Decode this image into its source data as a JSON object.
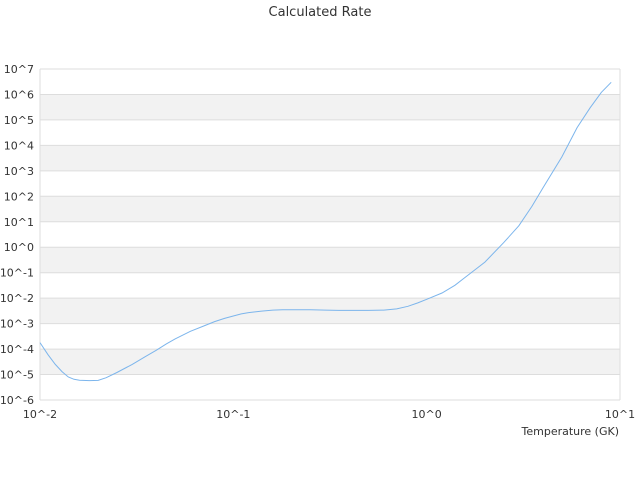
{
  "chart_data": {
    "type": "line",
    "title": "Calculated Rate",
    "xlabel": "Temperature (GK)",
    "ylabel": "",
    "x_scale": "log",
    "y_scale": "log",
    "xlim": [
      0.01,
      10
    ],
    "ylim": [
      1e-06,
      10000000.0
    ],
    "x_ticks": [
      "10^-2",
      "10^-1",
      "10^0",
      "10^1"
    ],
    "y_ticks": [
      "10^-6",
      "10^-5",
      "10^-4",
      "10^-3",
      "10^-2",
      "10^-1",
      "10^0",
      "10^1",
      "10^2",
      "10^3",
      "10^4",
      "10^5",
      "10^6",
      "10^7"
    ],
    "grid": "horizontal alternating bands",
    "legend": "none",
    "series": [
      {
        "color": "#7cb5ec",
        "x": [
          0.01,
          0.011,
          0.012,
          0.013,
          0.014,
          0.015,
          0.016,
          0.018,
          0.02,
          0.022,
          0.025,
          0.03,
          0.035,
          0.04,
          0.045,
          0.05,
          0.06,
          0.07,
          0.08,
          0.09,
          0.1,
          0.11,
          0.12,
          0.14,
          0.16,
          0.18,
          0.2,
          0.25,
          0.3,
          0.35,
          0.4,
          0.45,
          0.5,
          0.6,
          0.7,
          0.8,
          0.9,
          1.0,
          1.2,
          1.4,
          1.6,
          1.8,
          2.0,
          2.5,
          3.0,
          3.5,
          4.0,
          5.0,
          6.0,
          7.0,
          8.0,
          9.0
        ],
        "y": [
          0.00018,
          6e-05,
          2.5e-05,
          1.3e-05,
          8e-06,
          6.5e-06,
          6e-06,
          5.8e-06,
          5.9e-06,
          7.5e-06,
          1.2e-05,
          2.5e-05,
          5e-05,
          9e-05,
          0.00016,
          0.00025,
          0.0005,
          0.0008,
          0.0012,
          0.0016,
          0.002,
          0.0024,
          0.0027,
          0.0031,
          0.0034,
          0.0035,
          0.0035,
          0.0035,
          0.0034,
          0.0033,
          0.0033,
          0.0033,
          0.0033,
          0.0034,
          0.0038,
          0.0048,
          0.0065,
          0.009,
          0.016,
          0.032,
          0.07,
          0.14,
          0.26,
          1.5,
          7,
          40,
          220,
          3500,
          50000,
          300000,
          1200000,
          3000000
        ]
      }
    ]
  }
}
